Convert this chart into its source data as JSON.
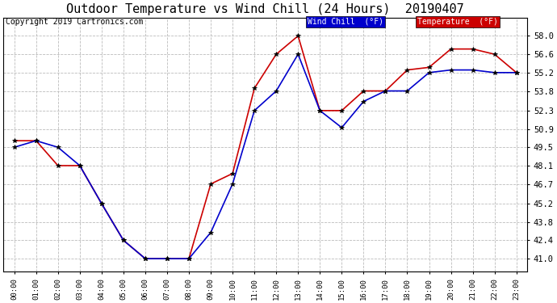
{
  "title": "Outdoor Temperature vs Wind Chill (24 Hours)  20190407",
  "copyright": "Copyright 2019 Cartronics.com",
  "legend_wind_chill": "Wind Chill  (°F)",
  "legend_temperature": "Temperature  (°F)",
  "hours": [
    "00:00",
    "01:00",
    "02:00",
    "03:00",
    "04:00",
    "05:00",
    "06:00",
    "07:00",
    "08:00",
    "09:00",
    "10:00",
    "11:00",
    "12:00",
    "13:00",
    "14:00",
    "15:00",
    "16:00",
    "17:00",
    "18:00",
    "19:00",
    "20:00",
    "21:00",
    "22:00",
    "23:00"
  ],
  "temperature": [
    50.0,
    50.0,
    48.1,
    48.1,
    45.2,
    42.4,
    41.0,
    41.0,
    41.0,
    46.7,
    47.5,
    54.0,
    56.6,
    58.0,
    52.3,
    52.3,
    53.8,
    53.8,
    55.4,
    55.6,
    57.0,
    57.0,
    56.6,
    55.2
  ],
  "wind_chill": [
    49.5,
    50.0,
    49.5,
    48.1,
    45.2,
    42.4,
    41.0,
    41.0,
    41.0,
    43.0,
    46.7,
    52.3,
    53.8,
    56.6,
    52.3,
    51.0,
    53.0,
    53.8,
    53.8,
    55.2,
    55.4,
    55.4,
    55.2,
    55.2
  ],
  "ylim_min": 40.0,
  "ylim_max": 59.4,
  "yticks": [
    41.0,
    42.4,
    43.8,
    45.2,
    46.7,
    48.1,
    49.5,
    50.9,
    52.3,
    53.8,
    55.2,
    56.6,
    58.0
  ],
  "bg_color": "#ffffff",
  "grid_color": "#bbbbbb",
  "temp_color": "#cc0000",
  "wind_color": "#0000cc",
  "title_fontsize": 11,
  "copyright_fontsize": 7,
  "wind_chill_legend_bg": "#0000cc",
  "temp_legend_bg": "#cc0000"
}
